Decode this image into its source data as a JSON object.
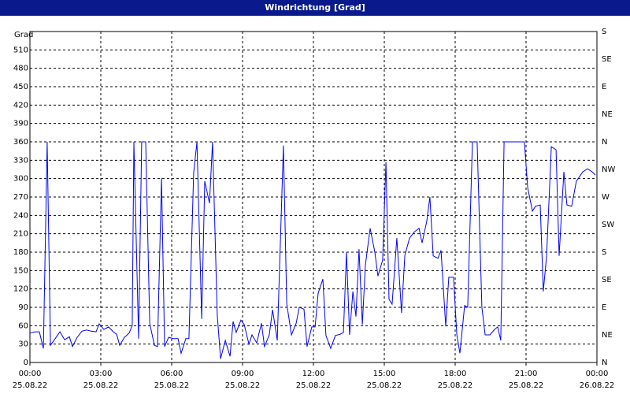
{
  "chart_data": {
    "type": "line",
    "title": "Windrichtung [Grad]",
    "y_label": "Grad",
    "x": [
      0,
      0.2,
      0.4,
      0.57,
      0.73,
      0.87,
      1.07,
      1.27,
      1.47,
      1.67,
      1.8,
      2,
      2.2,
      2.4,
      2.6,
      2.8,
      2.93,
      3.13,
      3.33,
      3.53,
      3.67,
      3.8,
      4,
      4.2,
      4.33,
      4.4,
      4.6,
      4.73,
      4.9,
      5.07,
      5.27,
      5.4,
      5.57,
      5.7,
      5.87,
      6.07,
      6.27,
      6.4,
      6.6,
      6.73,
      6.93,
      7.07,
      7.27,
      7.4,
      7.6,
      7.73,
      7.93,
      8.07,
      8.27,
      8.47,
      8.6,
      8.73,
      8.93,
      9.07,
      9.27,
      9.4,
      9.6,
      9.8,
      9.93,
      10.13,
      10.27,
      10.47,
      10.73,
      10.87,
      11.07,
      11.27,
      11.4,
      11.6,
      11.73,
      11.93,
      12.07,
      12.2,
      12.4,
      12.53,
      12.73,
      12.93,
      13.13,
      13.27,
      13.4,
      13.53,
      13.67,
      13.8,
      13.93,
      14.07,
      14.2,
      14.4,
      14.6,
      14.73,
      14.93,
      15.07,
      15.2,
      15.33,
      15.53,
      15.73,
      15.87,
      16.07,
      16.27,
      16.47,
      16.6,
      16.8,
      16.93,
      17.07,
      17.27,
      17.4,
      17.6,
      17.73,
      17.93,
      18.07,
      18.2,
      18.4,
      18.53,
      18.73,
      18.93,
      19.13,
      19.27,
      19.47,
      19.67,
      19.8,
      19.93,
      20.07,
      20.93,
      21.07,
      21.27,
      21.4,
      21.6,
      21.73,
      21.87,
      22.07,
      22.27,
      22.4,
      22.6,
      22.73,
      22.93,
      23.13,
      23.4,
      23.6,
      23.8,
      23.93
    ],
    "series": [
      {
        "color": "#0000ff",
        "values": [
          48,
          50,
          50,
          23,
          360,
          28,
          39,
          50,
          37,
          42,
          26,
          41,
          51,
          53,
          51,
          50,
          63,
          54,
          58,
          50,
          46,
          28,
          41,
          48,
          60,
          360,
          39,
          360,
          360,
          64,
          28,
          26,
          301,
          26,
          41,
          39,
          39,
          15,
          39,
          39,
          309,
          360,
          71,
          296,
          260,
          360,
          77,
          6,
          36,
          10,
          67,
          49,
          69,
          62,
          30,
          45,
          32,
          64,
          26,
          45,
          86,
          36,
          354,
          96,
          45,
          64,
          90,
          87,
          26,
          58,
          58,
          113,
          136,
          44,
          23,
          44,
          46,
          49,
          180,
          45,
          116,
          75,
          185,
          62,
          159,
          219,
          180,
          141,
          167,
          327,
          103,
          95,
          203,
          81,
          175,
          203,
          213,
          219,
          195,
          231,
          270,
          174,
          170,
          183,
          59,
          139,
          139,
          45,
          15,
          93,
          90,
          360,
          360,
          90,
          45,
          45,
          54,
          58,
          36,
          360,
          360,
          285,
          247,
          255,
          257,
          116,
          174,
          352,
          347,
          174,
          311,
          257,
          255,
          296,
          311,
          316,
          311,
          306
        ]
      }
    ],
    "xlim": [
      0,
      24
    ],
    "xticks": [
      {
        "value": 0,
        "label": "00:00\n25.08.22"
      },
      {
        "value": 3,
        "label": "03:00\n25.08.22"
      },
      {
        "value": 6,
        "label": "06:00\n25.08.22"
      },
      {
        "value": 9,
        "label": "09:00\n25.08.22"
      },
      {
        "value": 12,
        "label": "12:00\n25.08.22"
      },
      {
        "value": 15,
        "label": "15:00\n25.08.22"
      },
      {
        "value": 18,
        "label": "18:00\n25.08.22"
      },
      {
        "value": 21,
        "label": "21:00\n25.08.22"
      },
      {
        "value": 24,
        "label": "00:00\n26.08.22"
      }
    ],
    "ylim": [
      0,
      540
    ],
    "yticks": [
      0,
      30,
      60,
      90,
      120,
      150,
      180,
      210,
      240,
      270,
      300,
      330,
      360,
      390,
      420,
      450,
      480,
      510
    ],
    "y2lim": [
      0,
      540
    ],
    "y2ticks": [
      {
        "value": 0,
        "label": "N"
      },
      {
        "value": 45,
        "label": "NE"
      },
      {
        "value": 90,
        "label": "E"
      },
      {
        "value": 135,
        "label": "SE"
      },
      {
        "value": 180,
        "label": "S"
      },
      {
        "value": 225,
        "label": "SW"
      },
      {
        "value": 270,
        "label": "W"
      },
      {
        "value": 315,
        "label": "NW"
      },
      {
        "value": 360,
        "label": "N"
      },
      {
        "value": 405,
        "label": "NE"
      },
      {
        "value": 450,
        "label": "E"
      },
      {
        "value": 495,
        "label": "SE"
      },
      {
        "value": 540,
        "label": "S"
      }
    ],
    "grid": true
  }
}
